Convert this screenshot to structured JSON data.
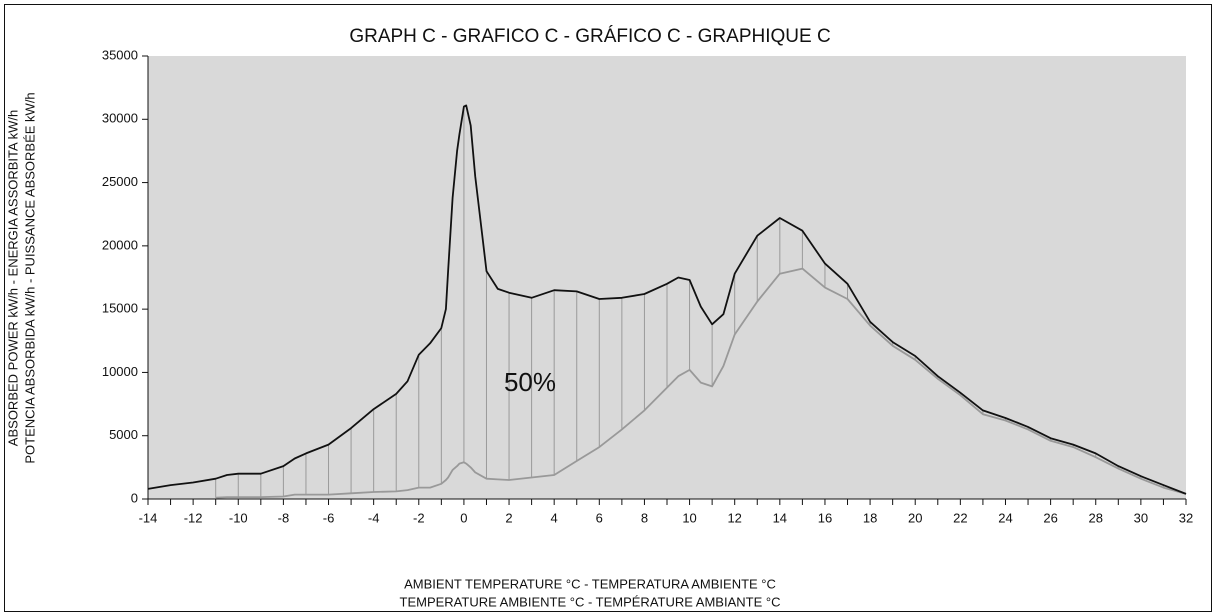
{
  "chart_data": {
    "type": "line",
    "title": "GRAPH C - GRAFICO C - GRÁFICO C - GRAPHIQUE C",
    "y_label": [
      "ABSORBED POWER kW/h - ENERGIA ASSORBITA kW/h",
      "POTENCIA ABSORBIDA kW/h - PUISSANCE ABSORBÉE kW/h"
    ],
    "x_label": [
      "AMBIENT TEMPERATURE °C - TEMPERATURA AMBIENTE °C",
      "TEMPERATURE AMBIENTE °C - TEMPÉRATURE AMBIANTE °C"
    ],
    "annotation": "50%",
    "x": [
      -14,
      -13,
      -12,
      -11,
      -10.5,
      -10,
      -9,
      -8,
      -7.5,
      -7,
      -6,
      -5,
      -4,
      -3,
      -2.5,
      -2,
      -1.5,
      -1,
      -0.8,
      -0.7,
      -0.5,
      -0.3,
      -0.2,
      0,
      0.1,
      0.3,
      0.5,
      0.8,
      1,
      1.5,
      2,
      3,
      4,
      5,
      6,
      7,
      8,
      9,
      9.5,
      10,
      10.5,
      11,
      11.5,
      12,
      13,
      14,
      15,
      16,
      17,
      18,
      19,
      20,
      21,
      22,
      23,
      24,
      25,
      26,
      27,
      28,
      29,
      30,
      31,
      32
    ],
    "series": [
      {
        "name": "upper",
        "color": "#111111",
        "values": [
          800,
          1100,
          1300,
          1600,
          1900,
          2000,
          2000,
          2600,
          3200,
          3600,
          4300,
          5600,
          7100,
          8300,
          9300,
          11400,
          12300,
          13500,
          15000,
          18000,
          23800,
          27500,
          28800,
          31000,
          31100,
          29500,
          25500,
          21000,
          18000,
          16600,
          16300,
          15900,
          16500,
          16400,
          15800,
          15900,
          16200,
          17000,
          17500,
          17300,
          15200,
          13800,
          14600,
          17800,
          20800,
          22200,
          21200,
          18600,
          17000,
          14000,
          12400,
          11300,
          9700,
          8400,
          7000,
          6400,
          5700,
          4800,
          4300,
          3600,
          2600,
          1800,
          1100,
          400
        ]
      },
      {
        "name": "lower",
        "color": "#999999",
        "values": [
          null,
          null,
          null,
          100,
          150,
          150,
          150,
          200,
          350,
          350,
          350,
          450,
          550,
          600,
          700,
          900,
          900,
          1200,
          1500,
          1700,
          2300,
          2600,
          2800,
          2900,
          2800,
          2500,
          2100,
          1800,
          1600,
          1550,
          1500,
          1700,
          1900,
          3000,
          4100,
          5500,
          7000,
          8800,
          9700,
          10200,
          9200,
          8900,
          10500,
          13000,
          15600,
          17800,
          18200,
          16700,
          15800,
          13700,
          12100,
          11000,
          9500,
          8200,
          6700,
          6200,
          5500,
          4600,
          4100,
          3300,
          2400,
          1600,
          900,
          400
        ]
      }
    ],
    "xlim": [
      -14,
      32
    ],
    "xticks": [
      -14,
      -12,
      -10,
      -8,
      -6,
      -4,
      -2,
      0,
      2,
      4,
      6,
      8,
      10,
      12,
      14,
      16,
      18,
      20,
      22,
      24,
      26,
      28,
      30,
      32
    ],
    "ylim": [
      0,
      35000
    ],
    "yticks": [
      0,
      5000,
      10000,
      15000,
      20000,
      25000,
      30000,
      35000
    ],
    "background": "#d9d9d9",
    "hatch_color": "#9a9a9a"
  }
}
